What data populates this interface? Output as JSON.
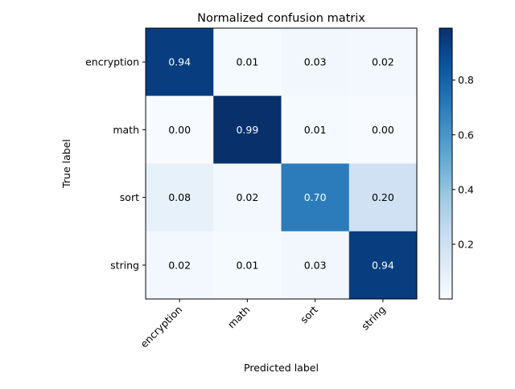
{
  "chart_data": {
    "type": "heatmap",
    "title": "Normalized confusion matrix",
    "xlabel": "Predicted label",
    "ylabel": "True label",
    "x_categories": [
      "encryption",
      "math",
      "sort",
      "string"
    ],
    "y_categories": [
      "encryption",
      "math",
      "sort",
      "string"
    ],
    "values": [
      [
        0.94,
        0.01,
        0.03,
        0.02
      ],
      [
        0.0,
        0.99,
        0.01,
        0.0
      ],
      [
        0.08,
        0.02,
        0.7,
        0.2
      ],
      [
        0.02,
        0.01,
        0.03,
        0.94
      ]
    ],
    "cell_labels": [
      [
        "0.94",
        "0.01",
        "0.03",
        "0.02"
      ],
      [
        "0.00",
        "0.99",
        "0.01",
        "0.00"
      ],
      [
        "0.08",
        "0.02",
        "0.70",
        "0.20"
      ],
      [
        "0.02",
        "0.01",
        "0.03",
        "0.94"
      ]
    ],
    "colormap": "Blues",
    "colormap_stops": [
      "#f7fbff",
      "#deebf7",
      "#c6dbef",
      "#9ecae1",
      "#6baed6",
      "#4292c6",
      "#2171b5",
      "#08519c",
      "#08306b"
    ],
    "colorbar": {
      "range": [
        0.0,
        0.99
      ],
      "ticks": [
        0.2,
        0.4,
        0.6,
        0.8
      ],
      "tick_labels": [
        "0.2",
        "0.4",
        "0.6",
        "0.8"
      ]
    },
    "text_color_dark": "#000000",
    "text_color_light": "#ffffff",
    "grid": false
  }
}
